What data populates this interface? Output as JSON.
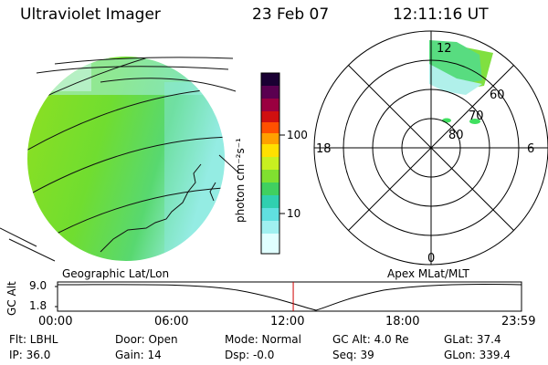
{
  "header": {
    "instrument": "Ultraviolet Imager",
    "date": "23 Feb 07",
    "time": "12:11:16 UT"
  },
  "panels": {
    "left_caption": "Geographic Lat/Lon",
    "right_caption": "Apex MLat/MLT"
  },
  "colorbar": {
    "unit_label": "photon cm⁻²s⁻¹",
    "ticks": [
      "100",
      "10"
    ],
    "colors": [
      "#1a0033",
      "#5a0050",
      "#9a0040",
      "#d01010",
      "#ff5000",
      "#ffa000",
      "#ffe000",
      "#c8f020",
      "#80e030",
      "#40d060",
      "#30d0b0",
      "#60e0e0",
      "#a0f0f0",
      "#e0ffff"
    ]
  },
  "polar_plot": {
    "mlt_labels": {
      "top": "12",
      "left": "18",
      "right": "6",
      "bottom": "0"
    },
    "lat_labels": [
      "60",
      "70",
      "80"
    ]
  },
  "altitude_strip": {
    "ylabel": "GC Alt",
    "yticks": [
      "9.0",
      "1.8"
    ],
    "xticks": [
      "00:00",
      "06:00",
      "12:00",
      "18:00",
      "23:59"
    ],
    "current_time_fraction": 0.508
  },
  "status": {
    "flt": "Flt: LBHL",
    "ip": "IP: 36.0",
    "door": "Door: Open",
    "gain": "Gain: 14",
    "mode": "Mode: Normal",
    "dsp": "Dsp:   -0.0",
    "gcalt": "GC Alt: 4.0 Re",
    "seq": "Seq: 39",
    "glat": "GLat:  37.4",
    "glon": "GLon: 339.4"
  }
}
